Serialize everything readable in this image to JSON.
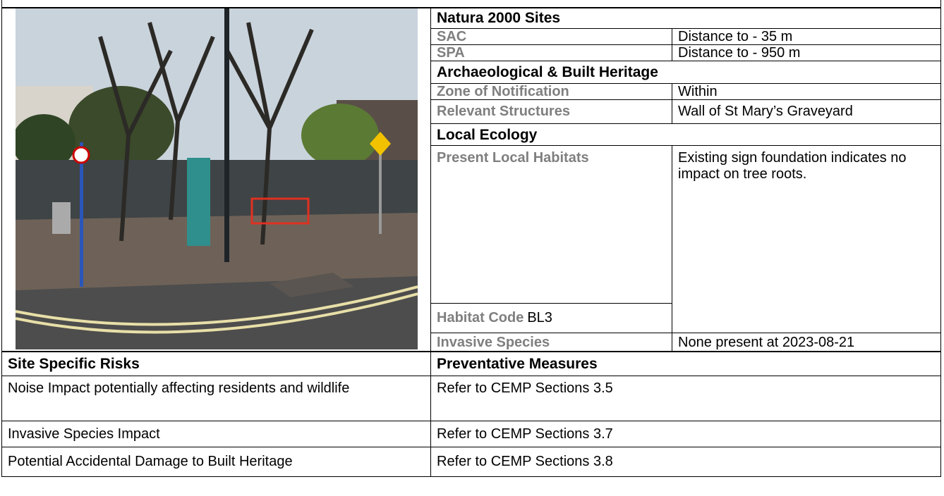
{
  "site_info": {
    "natura_2000": {
      "heading": "Natura 2000 Sites",
      "rows": [
        [
          "SAC",
          "Distance to - 35 m"
        ],
        [
          "SPA",
          "Distance to - 950 m"
        ]
      ]
    },
    "heritage": {
      "heading": "Archaeological & Built Heritage",
      "rows": [
        [
          "Zone of Notification",
          "Within"
        ],
        [
          "Relevant Structures",
          "Wall of St Mary’s Graveyard"
        ]
      ]
    },
    "ecology": {
      "heading": "Local Ecology",
      "present_local_habitats": {
        "label": "Present Local Habitats",
        "value": "Existing sign foundation indicates no impact on tree roots."
      },
      "habitat_code": {
        "label": "Habitat Code",
        "value": "BL3"
      },
      "invasive_species": {
        "label": "Invasive Species",
        "value": "None present at 2023-08-21"
      }
    }
  },
  "risks_table": {
    "headers": [
      "Site Specific Risks",
      "Preventative Measures"
    ],
    "rows": [
      [
        "Noise Impact potentially affecting residents and wildlife",
        "Refer to CEMP Sections 3.5"
      ],
      [
        "Invasive Species Impact",
        "Refer to CEMP Sections 3.7"
      ],
      [
        "Potential Accidental Damage to Built Heritage",
        "Refer to CEMP Sections 3.8"
      ]
    ]
  }
}
